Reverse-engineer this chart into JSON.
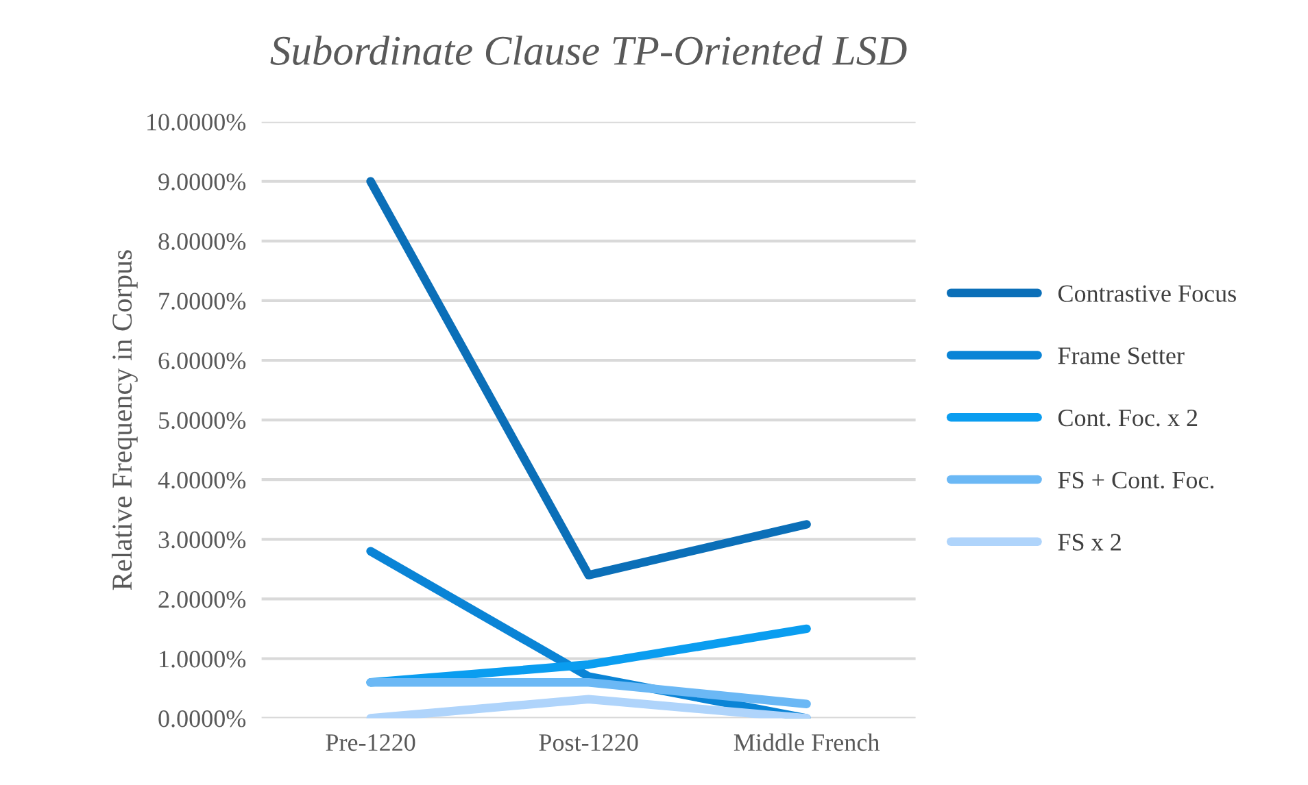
{
  "chart_data": {
    "type": "line",
    "title": "Subordinate Clause TP-Oriented LSD",
    "ylabel": "Relative Frequency in Corpus",
    "categories": [
      "Pre-1220",
      "Post-1220",
      "Middle French"
    ],
    "series": [
      {
        "name": "Contrastive Focus",
        "color": "#0b6fb8",
        "values": [
          9.0,
          2.4,
          3.25
        ]
      },
      {
        "name": "Frame Setter",
        "color": "#0a84d6",
        "values": [
          2.8,
          0.7,
          0.0
        ]
      },
      {
        "name": "Cont. Foc. x 2",
        "color": "#0a9df0",
        "values": [
          0.6,
          0.9,
          1.5
        ]
      },
      {
        "name": "FS + Cont. Foc.",
        "color": "#6bb8f5",
        "values": [
          0.6,
          0.6,
          0.24
        ]
      },
      {
        "name": "FS x 2",
        "color": "#afd4fb",
        "values": [
          0.0,
          0.32,
          0.0
        ]
      }
    ],
    "ylim": [
      0,
      10
    ],
    "yticks": [
      {
        "value": 0,
        "label": "0.0000%"
      },
      {
        "value": 1,
        "label": "1.0000%"
      },
      {
        "value": 2,
        "label": "2.0000%"
      },
      {
        "value": 3,
        "label": "3.0000%"
      },
      {
        "value": 4,
        "label": "4.0000%"
      },
      {
        "value": 5,
        "label": "5.0000%"
      },
      {
        "value": 6,
        "label": "6.0000%"
      },
      {
        "value": 7,
        "label": "7.0000%"
      },
      {
        "value": 8,
        "label": "8.0000%"
      },
      {
        "value": 9,
        "label": "9.0000%"
      },
      {
        "value": 10,
        "label": "10.0000%"
      }
    ],
    "grid": "y",
    "legend": "right",
    "marker": "none",
    "line_style": "solid"
  }
}
